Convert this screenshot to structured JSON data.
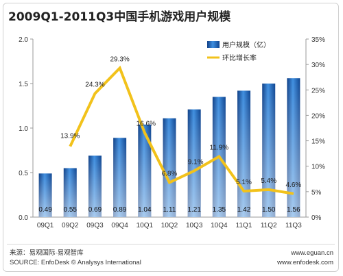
{
  "title": "2009Q1-2011Q3中国手机游戏用户规模",
  "footer": {
    "source_cn": "来源：易观国际·易观智库",
    "source_en": "SOURCE: EnfoDesk © Analysys International",
    "url1": "www.eguan.cn",
    "url2": "www.enfodesk.com"
  },
  "chart_data": {
    "type": "bar",
    "title": "2009Q1-2011Q3中国手机游戏用户规模",
    "categories": [
      "09Q1",
      "09Q2",
      "09Q3",
      "09Q4",
      "10Q1",
      "10Q2",
      "10Q3",
      "10Q4",
      "11Q1",
      "11Q2",
      "11Q3"
    ],
    "y_ticks": [
      "0.0",
      "0.5",
      "1.0",
      "1.5",
      "2.0"
    ],
    "y2_ticks": [
      "0%",
      "5%",
      "10%",
      "15%",
      "20%",
      "25%",
      "30%",
      "35%"
    ],
    "ylim": [
      0,
      2.0
    ],
    "y2lim": [
      0,
      35
    ],
    "legend_position": "top-right",
    "series": [
      {
        "name": "用户规模（亿）",
        "type": "bar",
        "axis": "left",
        "values": [
          0.49,
          0.55,
          0.69,
          0.89,
          1.04,
          1.11,
          1.21,
          1.35,
          1.42,
          1.5,
          1.56
        ],
        "labels": [
          "0.49",
          "0.55",
          "0.69",
          "0.89",
          "1.04",
          "1.11",
          "1.21",
          "1.35",
          "1.42",
          "1.50",
          "1.56"
        ],
        "color": "#2a6fc0"
      },
      {
        "name": "环比增长率",
        "type": "line",
        "axis": "right",
        "values": [
          null,
          13.9,
          24.3,
          29.3,
          16.6,
          6.8,
          9.1,
          11.9,
          5.1,
          5.4,
          4.6
        ],
        "labels": [
          "",
          "13.9%",
          "24.3%",
          "29.3%",
          "16.6%",
          "6.8%",
          "9.1%",
          "11.9%",
          "5.1%",
          "5.4%",
          "4.6%"
        ],
        "color": "#f2c21b"
      }
    ]
  }
}
